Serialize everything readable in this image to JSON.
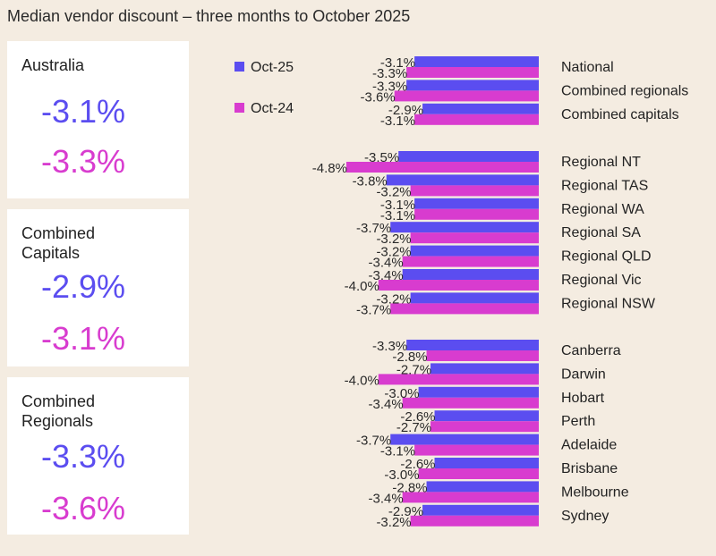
{
  "title": "Median vendor discount – three months to October 2025",
  "cards": [
    {
      "name": "Australia",
      "oct25": "-3.1%",
      "oct24": "-3.3%"
    },
    {
      "name": "Combined\nCapitals",
      "oct25": "-2.9%",
      "oct24": "-3.1%"
    },
    {
      "name": "Combined\nRegionals",
      "oct25": "-3.3%",
      "oct24": "-3.6%"
    }
  ],
  "chart_data": {
    "type": "bar",
    "orientation": "horizontal",
    "title": "Median vendor discount – three months to October 2025",
    "legend": [
      "Oct-25",
      "Oct-24"
    ],
    "legend_placement": "top-left",
    "colors": {
      "Oct-25": "#5b4df0",
      "Oct-24": "#d83ccf"
    },
    "groups": [
      [
        "National",
        "Combined regionals",
        "Combined capitals"
      ],
      [
        "Regional NT",
        "Regional TAS",
        "Regional WA",
        "Regional SA",
        "Regional QLD",
        "Regional Vic",
        "Regional NSW"
      ],
      [
        "Canberra",
        "Darwin",
        "Hobart",
        "Perth",
        "Adelaide",
        "Brisbane",
        "Melbourne",
        "Sydney"
      ]
    ],
    "categories": [
      "National",
      "Combined regionals",
      "Combined capitals",
      "Regional NT",
      "Regional TAS",
      "Regional WA",
      "Regional SA",
      "Regional QLD",
      "Regional Vic",
      "Regional NSW",
      "Canberra",
      "Darwin",
      "Hobart",
      "Perth",
      "Adelaide",
      "Brisbane",
      "Melbourne",
      "Sydney"
    ],
    "series": [
      {
        "name": "Oct-25",
        "values": [
          -3.1,
          -3.3,
          -2.9,
          -3.5,
          -3.8,
          -3.1,
          -3.7,
          -3.2,
          -3.4,
          -3.2,
          -3.3,
          -2.7,
          -3.0,
          -2.6,
          -3.7,
          -2.6,
          -2.8,
          -2.9
        ]
      },
      {
        "name": "Oct-24",
        "values": [
          -3.3,
          -3.6,
          -3.1,
          -4.8,
          -3.2,
          -3.1,
          -3.2,
          -3.4,
          -4.0,
          -3.7,
          -2.8,
          -4.0,
          -3.4,
          -2.7,
          -3.1,
          -3.0,
          -3.4,
          -3.2
        ]
      }
    ],
    "unit": "%"
  }
}
